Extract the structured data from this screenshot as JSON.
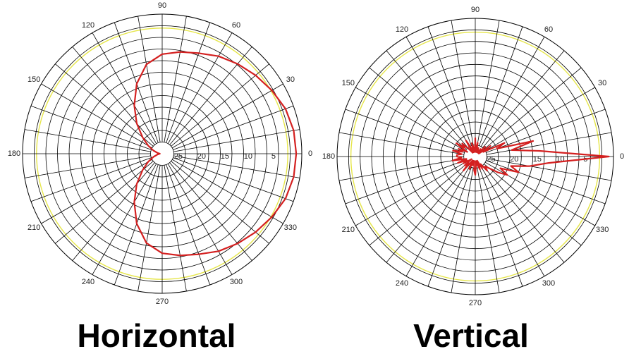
{
  "chart_data": [
    {
      "type": "polar",
      "title": "Horizontal",
      "rlim": [
        30,
        0
      ],
      "rticks": [
        5,
        10,
        15,
        20,
        25
      ],
      "rgrid": [
        2.5,
        5,
        7.5,
        10,
        12.5,
        15,
        17.5,
        20,
        22.5,
        25,
        27.5
      ],
      "angleticks": [
        0,
        30,
        60,
        90,
        120,
        150,
        180,
        210,
        240,
        270,
        300,
        330
      ],
      "anglegridstep": 10,
      "reference_ring": 3,
      "reference_color": "#e6e64a",
      "color": "#d42020",
      "angles": [
        0,
        10,
        20,
        30,
        40,
        50,
        60,
        70,
        80,
        90,
        100,
        110,
        120,
        130,
        140,
        150,
        160,
        170,
        180,
        190,
        200,
        210,
        220,
        230,
        240,
        250,
        260,
        270,
        280,
        290,
        300,
        310,
        320,
        330,
        340,
        350
      ],
      "values": [
        1.2,
        1.3,
        1.8,
        2.8,
        3.8,
        4.8,
        5.8,
        7,
        7.8,
        8.6,
        10.5,
        14,
        18,
        21.5,
        24.5,
        26.5,
        28,
        29,
        29.5,
        29,
        28,
        26.5,
        24.5,
        21.5,
        18,
        14,
        10.5,
        8.6,
        7.8,
        7,
        5.8,
        4.8,
        3.8,
        2.8,
        1.8,
        1.3
      ]
    },
    {
      "type": "polar",
      "title": "Vertical",
      "rlim": [
        30,
        0
      ],
      "rticks": [
        5,
        10,
        15,
        20,
        25
      ],
      "rgrid": [
        2.5,
        5,
        7.5,
        10,
        12.5,
        15,
        17.5,
        20,
        22.5,
        25,
        27.5
      ],
      "angleticks": [
        0,
        30,
        60,
        90,
        120,
        150,
        180,
        210,
        240,
        270,
        300,
        330
      ],
      "anglegridstep": 10,
      "reference_ring": 3,
      "reference_color": "#e6e64a",
      "color": "#d42020",
      "angles": [
        0,
        5,
        10,
        15,
        20,
        25,
        30,
        35,
        40,
        45,
        50,
        55,
        60,
        65,
        70,
        75,
        80,
        85,
        90,
        95,
        100,
        105,
        110,
        115,
        120,
        125,
        130,
        135,
        140,
        145,
        150,
        155,
        160,
        165,
        170,
        175,
        180,
        185,
        190,
        195,
        200,
        205,
        210,
        215,
        220,
        225,
        230,
        235,
        240,
        245,
        250,
        255,
        260,
        265,
        270,
        275,
        280,
        285,
        290,
        295,
        300,
        305,
        310,
        315,
        320,
        325,
        330,
        335,
        340,
        345,
        350,
        355
      ],
      "values": [
        1,
        16,
        22,
        17,
        25,
        23,
        28,
        26,
        29,
        27,
        29,
        28,
        29,
        29,
        28,
        29,
        27,
        29,
        26,
        29,
        28,
        27,
        29,
        28,
        26,
        29,
        28,
        26,
        27,
        25,
        28,
        26,
        27,
        25,
        27,
        26,
        26,
        27,
        25,
        28,
        26,
        28,
        27,
        29,
        27,
        28,
        26,
        29,
        28,
        27,
        29,
        28,
        29,
        27,
        26,
        28,
        29,
        28,
        27,
        29,
        27,
        28,
        26,
        27,
        26,
        24,
        22,
        24,
        20,
        22,
        18,
        14
      ]
    }
  ]
}
